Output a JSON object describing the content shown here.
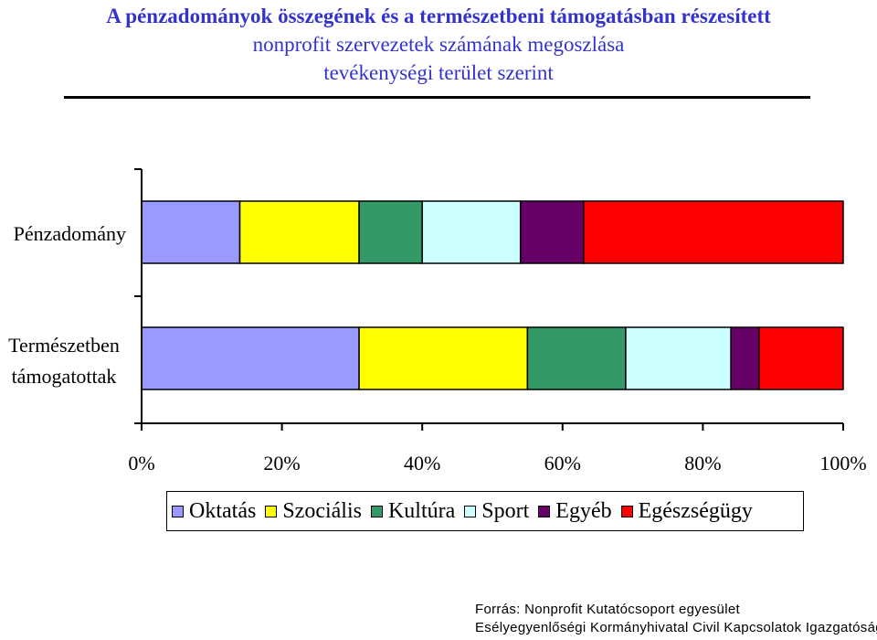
{
  "title": {
    "line1": "A pénzadományok összegének és a természetbeni támogatásban részesített",
    "line2": "nonprofit szervezetek számának megoszlása",
    "line3": "tevékenységi terület szerint"
  },
  "source": {
    "line1": "Forrás: Nonprofit Kutatócsoport egyesület",
    "line2": "Esélyegyenlőségi Kormányhivatal Civil Kapcsolatok Igazgatósága"
  },
  "chart_data": {
    "type": "bar",
    "orientation": "horizontal",
    "stacked": "percent",
    "categories": [
      "Pénzadomány",
      "Természetben támogatottak"
    ],
    "series": [
      {
        "name": "Oktatás",
        "color": "#9999ff",
        "values": [
          14,
          31
        ]
      },
      {
        "name": "Szociális",
        "color": "#ffff00",
        "values": [
          17,
          24
        ]
      },
      {
        "name": "Kultúra",
        "color": "#339966",
        "values": [
          9,
          14
        ]
      },
      {
        "name": "Sport",
        "color": "#ccffff",
        "values": [
          14,
          15
        ]
      },
      {
        "name": "Egyéb",
        "color": "#660066",
        "values": [
          9,
          4
        ]
      },
      {
        "name": "Egészségügy",
        "color": "#ff0000",
        "values": [
          37,
          12
        ]
      }
    ],
    "x_ticks": [
      "0%",
      "20%",
      "40%",
      "60%",
      "80%",
      "100%"
    ],
    "xlim": [
      0,
      100
    ],
    "legend": "bottom",
    "grid": false
  }
}
